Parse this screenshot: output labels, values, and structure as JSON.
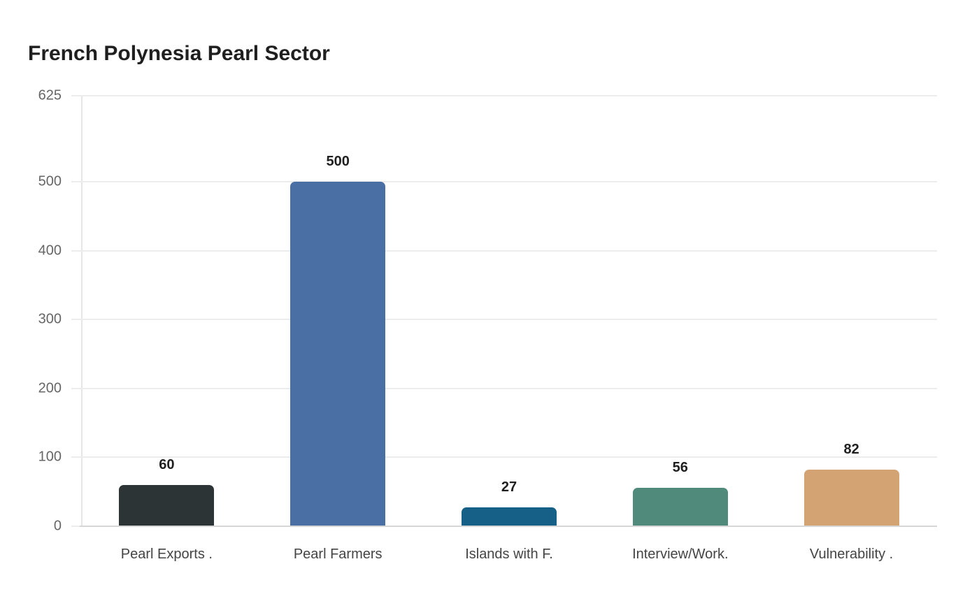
{
  "title": "French Polynesia Pearl Sector",
  "chart_data": {
    "type": "bar",
    "title": "French Polynesia Pearl Sector",
    "xlabel": "",
    "ylabel": "",
    "categories": [
      "Pearl Exports .",
      "Pearl Farmers",
      "Islands with F.",
      "Interview/Work.",
      "Vulnerability ."
    ],
    "values": [
      60,
      500,
      27,
      56,
      82
    ],
    "value_labels": [
      "60",
      "500",
      "27",
      "56",
      "82"
    ],
    "colors": [
      "#2d3436",
      "#4a6fa5",
      "#166088",
      "#4f8a7a",
      "#d4a373"
    ],
    "ylim": [
      0,
      625
    ],
    "yticks": [
      0,
      100,
      200,
      300,
      400,
      500,
      625
    ],
    "ytick_labels": [
      "0",
      "100",
      "200",
      "300",
      "400",
      "500",
      "625"
    ],
    "grid": true,
    "legend": "none"
  }
}
